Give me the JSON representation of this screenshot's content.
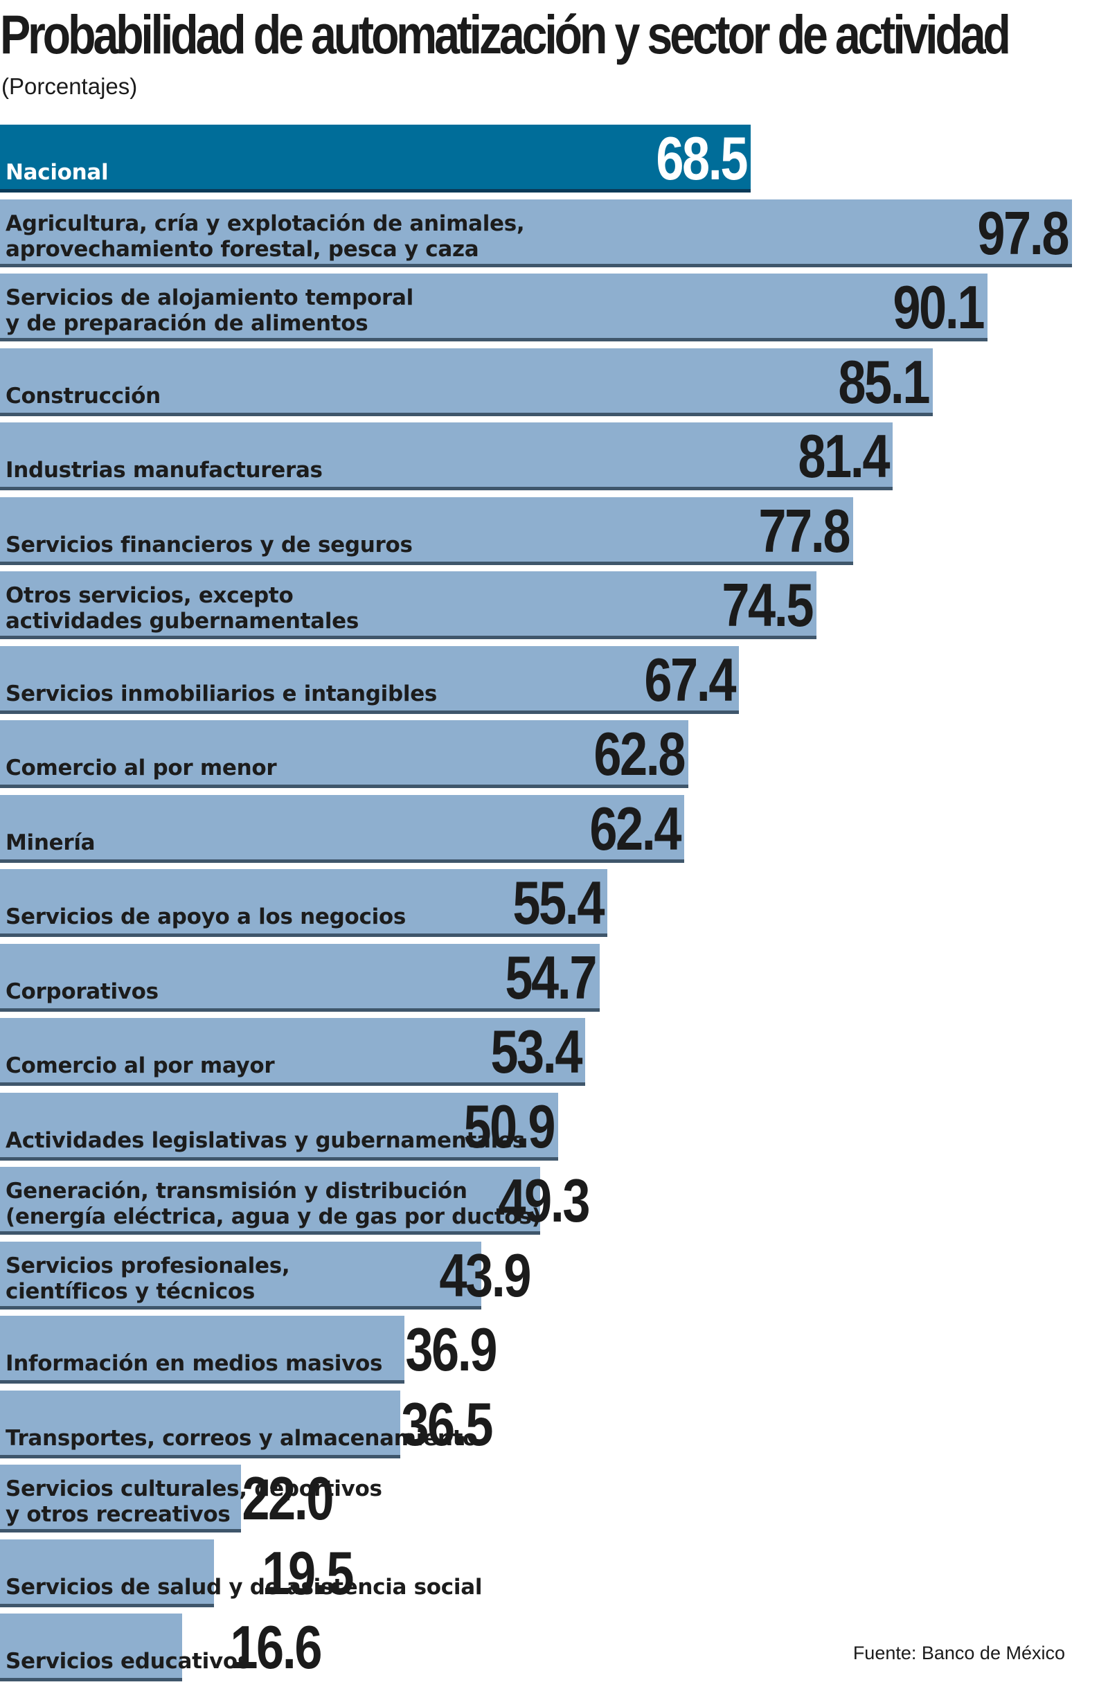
{
  "header": {
    "title": "Probabilidad de automatización y sector de actividad",
    "subtitle": "(Porcentajes)"
  },
  "footer": {
    "source": "Fuente: Banco de México"
  },
  "colors": {
    "bar": "#8eafcf",
    "bar_highlight": "#006d99",
    "bar_rule": "#3f566b",
    "text": "#1b1b1b"
  },
  "chart_data": {
    "type": "bar",
    "orientation": "horizontal",
    "title": "Probabilidad de automatización y sector de actividad",
    "subtitle": "(Porcentajes)",
    "xlabel": "",
    "ylabel": "",
    "xlim": [
      0,
      100
    ],
    "grid": false,
    "highlight_index": 0,
    "categories": [
      "Nacional",
      "Agricultura, cría y explotación de animales,\naprovechamiento forestal, pesca y caza",
      "Servicios de alojamiento temporal\ny de preparación de alimentos",
      "Construcción",
      "Industrias manufactureras",
      "Servicios financieros y de seguros",
      "Otros servicios, excepto\nactividades gubernamentales",
      "Servicios inmobiliarios e intangibles",
      "Comercio al por menor",
      "Minería",
      "Servicios de apoyo a los negocios",
      "Corporativos",
      "Comercio al por mayor",
      "Actividades legislativas y gubernamentales",
      "Generación, transmisión y distribución\n(energía eléctrica, agua y de gas por ductos)",
      "Servicios profesionales,\ncientíficos y técnicos",
      "Información en medios masivos",
      "Transportes, correos y almacenamiento",
      "Servicios culturales, deportivos\ny otros recreativos",
      "Servicios de salud y de asistencia social",
      "Servicios educativos"
    ],
    "values": [
      68.5,
      97.8,
      90.1,
      85.1,
      81.4,
      77.8,
      74.5,
      67.4,
      62.8,
      62.4,
      55.4,
      54.7,
      53.4,
      50.9,
      49.3,
      43.9,
      36.9,
      36.5,
      22.0,
      19.5,
      16.6
    ],
    "value_labels": [
      "68.5",
      "97.8",
      "90.1",
      "85.1",
      "81.4",
      "77.8",
      "74.5",
      "67.4",
      "62.8",
      "62.4",
      "55.4",
      "54.7",
      "53.4",
      "50.9",
      "49.3",
      "43.9",
      "36.9",
      "36.5",
      "22.0",
      "19.5",
      "16.6"
    ]
  }
}
